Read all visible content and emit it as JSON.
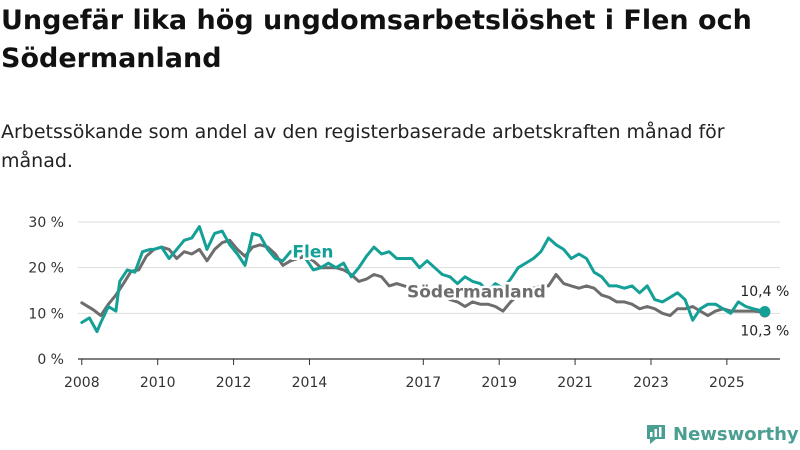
{
  "title": "Ungefär lika hög ungdomsarbetslöshet i Flen och Södermanland",
  "subtitle": "Arbetssökande som andel av den registerbaserade arbetskraften månad för månad.",
  "brand": {
    "name": "Newsworthy"
  },
  "colors": {
    "flen": "#14a096",
    "sodermanland": "#6d6d6d",
    "grid": "#dddddd",
    "brand": "#4a9e92"
  },
  "chart_data": {
    "type": "line",
    "title": "Ungefär lika hög ungdomsarbetslöshet i Flen och Södermanland",
    "xlabel": "",
    "ylabel": "",
    "ylim": [
      0,
      30
    ],
    "xlim": [
      2007.9,
      2026.4
    ],
    "y_ticks": [
      0,
      10,
      20,
      30
    ],
    "y_tick_labels": [
      "0 %",
      "10 %",
      "20 %",
      "30 %"
    ],
    "x_ticks": [
      2008,
      2010,
      2012,
      2014,
      2017,
      2019,
      2021,
      2023,
      2025
    ],
    "x_tick_labels": [
      "2008",
      "2010",
      "2012",
      "2014",
      "2017",
      "2019",
      "2021",
      "2023",
      "2025"
    ],
    "grid": true,
    "series": [
      {
        "name": "Södermanland",
        "label": "Södermanland",
        "end_label": "10,3 %",
        "x": [
          2008.0,
          2008.3,
          2008.5,
          2008.7,
          2008.9,
          2009.1,
          2009.3,
          2009.5,
          2009.7,
          2009.9,
          2010.1,
          2010.3,
          2010.5,
          2010.7,
          2010.9,
          2011.1,
          2011.3,
          2011.5,
          2011.7,
          2011.9,
          2012.1,
          2012.3,
          2012.5,
          2012.7,
          2012.9,
          2013.1,
          2013.3,
          2013.5,
          2013.7,
          2013.9,
          2014.1,
          2014.3,
          2014.5,
          2014.7,
          2014.9,
          2015.1,
          2015.3,
          2015.5,
          2015.7,
          2015.9,
          2016.1,
          2016.3,
          2016.5,
          2016.7,
          2016.9,
          2017.1,
          2017.3,
          2017.5,
          2017.7,
          2017.9,
          2018.1,
          2018.3,
          2018.5,
          2018.7,
          2018.9,
          2019.1,
          2019.3,
          2019.5,
          2019.7,
          2019.9,
          2020.1,
          2020.3,
          2020.5,
          2020.7,
          2020.9,
          2021.1,
          2021.3,
          2021.5,
          2021.7,
          2021.9,
          2022.1,
          2022.3,
          2022.5,
          2022.7,
          2022.9,
          2023.1,
          2023.3,
          2023.5,
          2023.7,
          2023.9,
          2024.1,
          2024.3,
          2024.5,
          2024.7,
          2024.9,
          2025.1,
          2025.3,
          2025.5,
          2025.7,
          2026.0
        ],
        "values": [
          12.3,
          10.8,
          9.5,
          12.0,
          14.0,
          16.5,
          19.2,
          19.5,
          22.5,
          24.0,
          24.5,
          24.0,
          22.0,
          23.5,
          23.0,
          24.0,
          21.5,
          24.0,
          25.5,
          26.0,
          24.0,
          22.5,
          24.5,
          25.0,
          24.5,
          23.0,
          20.5,
          21.5,
          22.0,
          22.5,
          21.5,
          20.0,
          20.0,
          20.0,
          19.5,
          18.5,
          17.0,
          17.5,
          18.5,
          18.0,
          16.0,
          16.5,
          16.0,
          15.5,
          14.0,
          14.5,
          14.0,
          14.5,
          13.0,
          12.5,
          11.5,
          12.5,
          12.0,
          12.0,
          11.5,
          10.5,
          12.5,
          14.0,
          14.5,
          15.5,
          16.0,
          16.0,
          18.5,
          16.5,
          16.0,
          15.5,
          16.0,
          15.5,
          14.0,
          13.5,
          12.5,
          12.5,
          12.0,
          11.0,
          11.5,
          11.0,
          10.0,
          9.5,
          11.0,
          11.0,
          11.5,
          10.5,
          9.5,
          10.5,
          11.0,
          10.5,
          10.5,
          10.5,
          10.5,
          10.3
        ]
      },
      {
        "name": "Flen",
        "label": "Flen",
        "end_label": "10,4 %",
        "x": [
          2008.0,
          2008.2,
          2008.4,
          2008.5,
          2008.7,
          2008.9,
          2009.0,
          2009.2,
          2009.4,
          2009.6,
          2009.8,
          2009.9,
          2010.1,
          2010.3,
          2010.5,
          2010.7,
          2010.9,
          2011.1,
          2011.3,
          2011.5,
          2011.7,
          2011.9,
          2012.1,
          2012.3,
          2012.5,
          2012.7,
          2012.9,
          2013.1,
          2013.3,
          2013.5,
          2013.7,
          2013.9,
          2014.1,
          2014.3,
          2014.5,
          2014.7,
          2014.9,
          2015.1,
          2015.3,
          2015.5,
          2015.7,
          2015.9,
          2016.1,
          2016.3,
          2016.5,
          2016.7,
          2016.9,
          2017.1,
          2017.3,
          2017.5,
          2017.7,
          2017.9,
          2018.1,
          2018.3,
          2018.5,
          2018.7,
          2018.9,
          2019.1,
          2019.3,
          2019.5,
          2019.7,
          2019.9,
          2020.1,
          2020.3,
          2020.5,
          2020.7,
          2020.9,
          2021.1,
          2021.3,
          2021.5,
          2021.7,
          2021.9,
          2022.1,
          2022.3,
          2022.5,
          2022.7,
          2022.9,
          2023.1,
          2023.3,
          2023.5,
          2023.7,
          2023.9,
          2024.1,
          2024.3,
          2024.5,
          2024.7,
          2024.9,
          2025.1,
          2025.3,
          2025.5,
          2025.7,
          2026.0
        ],
        "values": [
          8.0,
          9.0,
          6.0,
          8.0,
          11.5,
          10.5,
          17.0,
          19.5,
          19.0,
          23.5,
          24.0,
          24.0,
          24.5,
          22.0,
          24.0,
          26.0,
          26.5,
          29.0,
          24.0,
          27.5,
          28.0,
          25.0,
          23.0,
          20.5,
          27.5,
          27.0,
          24.0,
          22.0,
          21.5,
          23.5,
          24.0,
          22.0,
          19.5,
          20.0,
          21.0,
          20.0,
          21.0,
          18.0,
          20.0,
          22.5,
          24.5,
          23.0,
          23.5,
          22.0,
          22.0,
          22.0,
          20.0,
          21.5,
          20.0,
          18.5,
          18.0,
          16.5,
          18.0,
          17.0,
          16.5,
          15.0,
          16.5,
          15.5,
          17.5,
          20.0,
          21.0,
          22.0,
          23.5,
          26.5,
          25.0,
          24.0,
          22.0,
          23.0,
          22.0,
          19.0,
          18.0,
          16.0,
          16.0,
          15.5,
          16.0,
          14.5,
          16.0,
          13.0,
          12.5,
          13.5,
          14.5,
          13.0,
          8.5,
          11.0,
          12.0,
          12.0,
          11.0,
          10.0,
          12.5,
          11.5,
          11.0,
          10.4
        ]
      }
    ]
  }
}
